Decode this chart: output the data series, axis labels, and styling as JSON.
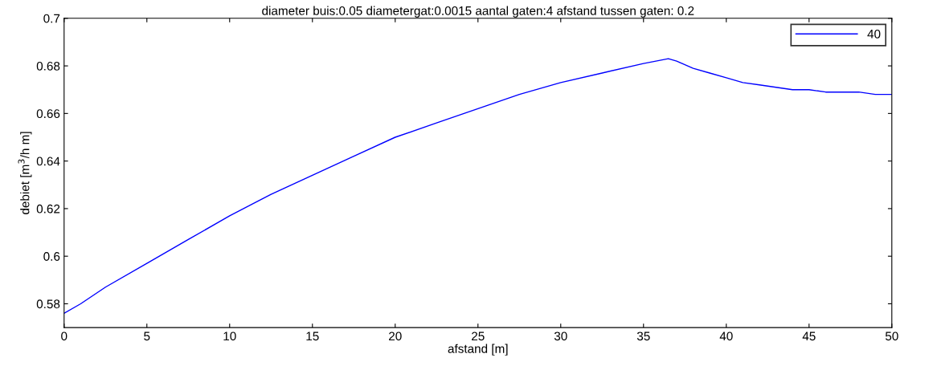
{
  "chart_data": {
    "type": "line",
    "title": "diameter buis:0.05 diametergat:0.0015 aantal gaten:4 afstand tussen gaten: 0.2",
    "xlabel": "afstand [m]",
    "ylabel": "debiet [m$^{3}$/h m]",
    "x": [
      0,
      1,
      2.5,
      5,
      7.5,
      10,
      12.5,
      15,
      17.5,
      20,
      22.5,
      25,
      27.5,
      30,
      32.5,
      35,
      36.5,
      37,
      38,
      39,
      40,
      41,
      42,
      43,
      44,
      45,
      46,
      47,
      48,
      49,
      50
    ],
    "series": [
      {
        "name": "40",
        "color": "#0000ff",
        "values": [
          0.576,
          0.58,
          0.587,
          0.597,
          0.607,
          0.617,
          0.626,
          0.634,
          0.642,
          0.65,
          0.656,
          0.662,
          0.668,
          0.673,
          0.677,
          0.681,
          0.683,
          0.682,
          0.679,
          0.677,
          0.675,
          0.673,
          0.672,
          0.671,
          0.67,
          0.67,
          0.669,
          0.669,
          0.669,
          0.668,
          0.668
        ]
      }
    ],
    "xlim": [
      0,
      50
    ],
    "ylim": [
      0.57,
      0.7
    ],
    "xticks": [
      0,
      5,
      10,
      15,
      20,
      25,
      30,
      35,
      40,
      45,
      50
    ],
    "yticks": [
      0.58,
      0.6,
      0.62,
      0.64,
      0.66,
      0.68,
      0.7
    ],
    "grid": false,
    "legend": "top right",
    "marker": "none",
    "line_style": "solid"
  }
}
